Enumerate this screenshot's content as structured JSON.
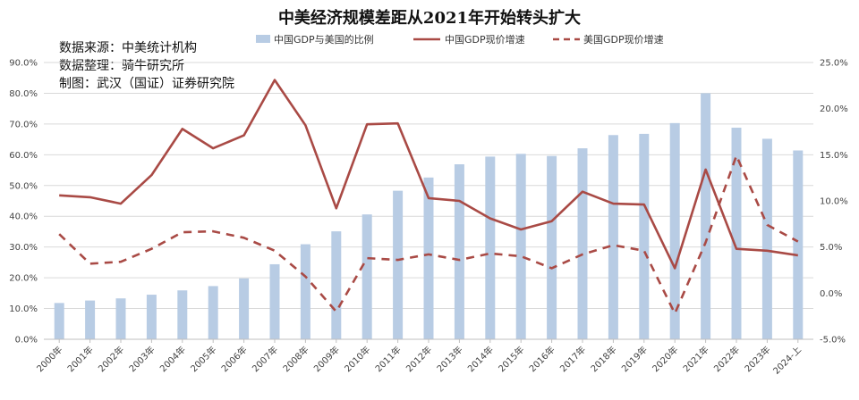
{
  "chart_data": {
    "type": "bar+line",
    "title": "中美经济规模差距从2021年开始转头扩大",
    "notes": [
      "数据来源：中美统计机构",
      "数据整理：骑牛研究所",
      "制图：武汉（国证）证券研究院"
    ],
    "legend": [
      {
        "name": "中国GDP与美国的比例",
        "kind": "bar",
        "color": "#b8cce4"
      },
      {
        "name": "中国GDP现价增速",
        "kind": "line",
        "color": "#a94a45"
      },
      {
        "name": "美国GDP现价增速",
        "kind": "dash",
        "color": "#a94a45"
      }
    ],
    "categories": [
      "2000年",
      "2001年",
      "2002年",
      "2003年",
      "2004年",
      "2005年",
      "2006年",
      "2007年",
      "2008年",
      "2009年",
      "2010年",
      "2011年",
      "2012年",
      "2013年",
      "2014年",
      "2015年",
      "2016年",
      "2017年",
      "2018年",
      "2019年",
      "2020年",
      "2021年",
      "2022年",
      "2023年",
      "2024-上"
    ],
    "left_axis": {
      "min": 0,
      "max": 90,
      "step": 10,
      "ticks": [
        "0.0%",
        "10.0%",
        "20.0%",
        "30.0%",
        "40.0%",
        "50.0%",
        "60.0%",
        "70.0%",
        "80.0%",
        "90.0%"
      ]
    },
    "right_axis": {
      "min": -5,
      "max": 25,
      "step": 5,
      "ticks": [
        "-5.0%",
        "0.0%",
        "5.0%",
        "10.0%",
        "15.0%",
        "20.0%",
        "25.0%"
      ]
    },
    "series": [
      {
        "name": "中国GDP与美国的比例",
        "type": "bar",
        "axis": "left",
        "values": [
          11.8,
          12.6,
          13.3,
          14.5,
          15.9,
          17.3,
          19.8,
          24.4,
          30.9,
          35.1,
          40.6,
          48.3,
          52.6,
          56.9,
          59.4,
          60.3,
          59.6,
          62.1,
          66.4,
          66.8,
          70.3,
          80.0,
          68.8,
          65.2,
          61.4
        ]
      },
      {
        "name": "中国GDP现价增速",
        "type": "line",
        "axis": "right",
        "values": [
          10.6,
          10.4,
          9.7,
          12.8,
          17.8,
          15.7,
          17.1,
          23.1,
          18.2,
          9.2,
          18.3,
          18.4,
          10.3,
          10.0,
          8.1,
          6.9,
          7.8,
          11.0,
          9.7,
          9.6,
          2.7,
          13.4,
          4.8,
          4.6,
          4.1
        ]
      },
      {
        "name": "美国GDP现价增速",
        "type": "dash",
        "axis": "right",
        "values": [
          6.4,
          3.2,
          3.4,
          4.8,
          6.6,
          6.7,
          6.0,
          4.6,
          1.8,
          -2.0,
          3.8,
          3.6,
          4.2,
          3.6,
          4.3,
          4.0,
          2.7,
          4.2,
          5.2,
          4.6,
          -2.2,
          5.5,
          14.9,
          7.4,
          5.6
        ]
      }
    ]
  }
}
